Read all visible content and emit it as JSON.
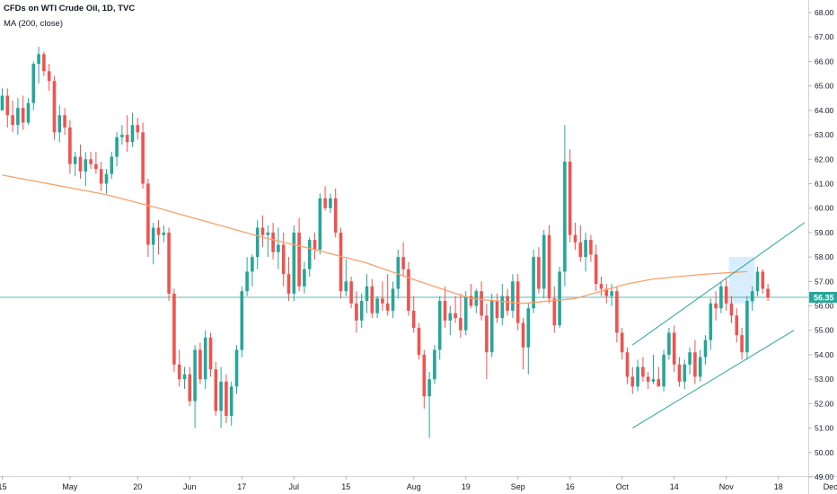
{
  "legend": {
    "title": "CFDs on WTI Crude Oil, 1D, TVC",
    "ma_label": "MA (200, close)"
  },
  "chart_data": {
    "type": "candlestick",
    "title": "CFDs on WTI Crude Oil, 1D, TVC",
    "indicator": "MA (200, close)",
    "ylim": [
      49.0,
      68.0
    ],
    "y_ticks": [
      49.0,
      50.0,
      51.0,
      52.0,
      53.0,
      54.0,
      55.0,
      56.0,
      57.0,
      58.0,
      59.0,
      60.0,
      61.0,
      62.0,
      63.0,
      64.0,
      65.0,
      66.0,
      67.0,
      68.0
    ],
    "y_tick_labels": [
      "49.00",
      "50.00",
      "51.00",
      "52.00",
      "53.00",
      "54.00",
      "55.00",
      "56.00",
      "57.00",
      "58.00",
      "59.00",
      "60.00",
      "61.00",
      "62.00",
      "63.00",
      "64.00",
      "65.00",
      "66.00",
      "67.00",
      "68.00"
    ],
    "x_labels": [
      "15",
      "May",
      "20",
      "Jun",
      "17",
      "Jul",
      "15",
      "Aug",
      "19",
      "Sep",
      "16",
      "Oct",
      "14",
      "Nov",
      "18",
      "Dec"
    ],
    "x_label_index": [
      0,
      13,
      26,
      36,
      46,
      56,
      66,
      79,
      89,
      99,
      109,
      119,
      129,
      139,
      149,
      159
    ],
    "last_price": 56.35,
    "last_price_label": "56.35",
    "colors": {
      "up": "#26a69a",
      "down": "#ef5350",
      "ma": "#f7a26b",
      "channel": "#26a69a",
      "highlight": "#bbdefb",
      "last_line": "#26a69a",
      "axis_text": "#131722",
      "grid": "#e0e3eb"
    },
    "candles": [
      [
        64.0,
        64.9,
        64.0,
        64.6
      ],
      [
        64.6,
        64.9,
        63.3,
        63.8
      ],
      [
        63.8,
        64.4,
        63.1,
        63.4
      ],
      [
        63.4,
        64.5,
        63.0,
        64.1
      ],
      [
        64.1,
        64.6,
        63.2,
        63.5
      ],
      [
        63.5,
        64.5,
        63.4,
        64.3
      ],
      [
        64.3,
        66.0,
        64.0,
        65.9
      ],
      [
        65.9,
        66.6,
        65.1,
        66.3
      ],
      [
        66.3,
        66.4,
        65.4,
        65.6
      ],
      [
        65.6,
        65.9,
        64.8,
        65.2
      ],
      [
        65.2,
        65.4,
        62.8,
        63.1
      ],
      [
        63.1,
        64.2,
        62.7,
        63.8
      ],
      [
        63.8,
        64.1,
        63.0,
        63.3
      ],
      [
        63.3,
        63.6,
        61.4,
        61.8
      ],
      [
        61.8,
        62.3,
        61.3,
        62.1
      ],
      [
        62.1,
        62.6,
        61.2,
        61.5
      ],
      [
        61.5,
        62.3,
        60.9,
        62.0
      ],
      [
        62.0,
        62.3,
        61.6,
        61.8
      ],
      [
        61.8,
        62.3,
        61.4,
        61.6
      ],
      [
        61.6,
        61.9,
        60.7,
        61.0
      ],
      [
        61.0,
        61.6,
        60.6,
        61.4
      ],
      [
        61.4,
        62.3,
        61.2,
        62.1
      ],
      [
        62.1,
        63.1,
        61.7,
        62.9
      ],
      [
        62.9,
        63.4,
        62.6,
        63.0
      ],
      [
        63.0,
        63.8,
        62.3,
        62.7
      ],
      [
        62.7,
        63.9,
        62.5,
        63.4
      ],
      [
        63.4,
        63.7,
        62.8,
        63.1
      ],
      [
        63.1,
        63.5,
        60.8,
        61.0
      ],
      [
        61.0,
        61.2,
        58.0,
        58.5
      ],
      [
        58.5,
        59.4,
        57.7,
        59.2
      ],
      [
        59.2,
        59.5,
        58.1,
        58.9
      ],
      [
        58.9,
        59.3,
        58.6,
        59.0
      ],
      [
        59.0,
        59.2,
        56.2,
        56.5
      ],
      [
        56.5,
        56.7,
        53.3,
        53.6
      ],
      [
        53.6,
        54.2,
        52.7,
        53.0
      ],
      [
        53.0,
        53.5,
        52.6,
        53.2
      ],
      [
        53.2,
        53.5,
        51.9,
        52.1
      ],
      [
        52.1,
        54.4,
        51.0,
        54.2
      ],
      [
        54.2,
        54.5,
        52.8,
        53.0
      ],
      [
        53.0,
        55.0,
        52.6,
        54.7
      ],
      [
        54.7,
        54.9,
        53.1,
        53.4
      ],
      [
        53.4,
        53.7,
        51.5,
        51.7
      ],
      [
        51.7,
        53.5,
        51.0,
        52.9
      ],
      [
        52.9,
        53.2,
        51.2,
        51.5
      ],
      [
        51.5,
        52.9,
        51.1,
        52.7
      ],
      [
        52.7,
        54.4,
        52.4,
        54.2
      ],
      [
        54.2,
        56.8,
        53.9,
        56.6
      ],
      [
        56.6,
        58.0,
        56.4,
        57.4
      ],
      [
        57.4,
        58.1,
        56.8,
        58.0
      ],
      [
        58.0,
        59.5,
        57.5,
        59.2
      ],
      [
        59.2,
        59.7,
        58.4,
        58.9
      ],
      [
        58.9,
        59.3,
        58.0,
        59.0
      ],
      [
        59.0,
        59.4,
        57.9,
        58.2
      ],
      [
        58.2,
        59.2,
        57.5,
        58.5
      ],
      [
        58.5,
        59.0,
        56.8,
        57.3
      ],
      [
        57.3,
        58.0,
        56.2,
        56.5
      ],
      [
        56.5,
        59.3,
        56.2,
        59.0
      ],
      [
        59.0,
        59.6,
        56.6,
        56.8
      ],
      [
        56.8,
        57.8,
        56.5,
        57.5
      ],
      [
        57.5,
        58.8,
        57.2,
        58.7
      ],
      [
        58.7,
        59.0,
        57.9,
        58.3
      ],
      [
        58.3,
        60.6,
        58.1,
        60.4
      ],
      [
        60.4,
        60.9,
        59.9,
        60.0
      ],
      [
        60.0,
        60.6,
        59.8,
        60.4
      ],
      [
        60.4,
        60.8,
        58.8,
        59.0
      ],
      [
        59.0,
        59.2,
        56.3,
        56.6
      ],
      [
        56.6,
        57.9,
        56.4,
        57.0
      ],
      [
        57.0,
        57.2,
        55.9,
        56.1
      ],
      [
        56.1,
        56.6,
        54.9,
        55.4
      ],
      [
        55.4,
        56.5,
        55.1,
        56.2
      ],
      [
        56.2,
        57.3,
        55.7,
        56.8
      ],
      [
        56.8,
        57.1,
        55.5,
        55.7
      ],
      [
        55.7,
        56.4,
        55.5,
        56.3
      ],
      [
        56.3,
        57.0,
        55.8,
        56.1
      ],
      [
        56.1,
        57.3,
        55.6,
        55.8
      ],
      [
        55.8,
        57.0,
        55.5,
        56.7
      ],
      [
        56.7,
        58.3,
        56.3,
        58.0
      ],
      [
        58.0,
        58.6,
        57.2,
        57.5
      ],
      [
        57.5,
        57.8,
        55.6,
        55.8
      ],
      [
        55.8,
        56.4,
        54.9,
        55.1
      ],
      [
        55.1,
        55.3,
        53.8,
        54.0
      ],
      [
        54.0,
        54.2,
        51.8,
        52.3
      ],
      [
        52.3,
        53.3,
        50.6,
        53.0
      ],
      [
        53.0,
        54.4,
        52.8,
        54.2
      ],
      [
        54.2,
        56.4,
        53.8,
        56.2
      ],
      [
        56.2,
        56.8,
        55.1,
        55.4
      ],
      [
        55.4,
        56.0,
        54.8,
        55.7
      ],
      [
        55.7,
        56.4,
        55.3,
        55.5
      ],
      [
        55.5,
        56.5,
        54.7,
        55.0
      ],
      [
        55.0,
        56.6,
        54.8,
        56.4
      ],
      [
        56.4,
        56.9,
        55.9,
        56.0
      ],
      [
        56.0,
        56.7,
        55.7,
        56.6
      ],
      [
        56.6,
        57.0,
        55.4,
        55.6
      ],
      [
        55.6,
        56.1,
        53.0,
        54.1
      ],
      [
        54.1,
        56.5,
        53.9,
        56.2
      ],
      [
        56.2,
        56.5,
        55.3,
        55.5
      ],
      [
        55.5,
        56.9,
        55.2,
        56.4
      ],
      [
        56.4,
        56.7,
        55.6,
        55.8
      ],
      [
        55.8,
        57.3,
        55.5,
        57.0
      ],
      [
        57.0,
        57.3,
        55.0,
        55.3
      ],
      [
        55.3,
        55.5,
        53.4,
        54.3
      ],
      [
        54.3,
        56.1,
        53.2,
        55.9
      ],
      [
        55.9,
        58.3,
        55.7,
        58.0
      ],
      [
        58.0,
        58.4,
        56.5,
        56.7
      ],
      [
        56.7,
        59.1,
        56.3,
        58.9
      ],
      [
        58.9,
        59.3,
        56.1,
        56.3
      ],
      [
        56.3,
        56.8,
        54.9,
        55.2
      ],
      [
        55.2,
        57.6,
        55.1,
        57.4
      ],
      [
        57.4,
        63.4,
        56.8,
        61.9
      ],
      [
        61.9,
        62.4,
        58.6,
        58.9
      ],
      [
        58.9,
        59.4,
        58.3,
        58.6
      ],
      [
        58.6,
        59.3,
        57.8,
        58.0
      ],
      [
        58.0,
        59.0,
        57.4,
        58.7
      ],
      [
        58.7,
        58.9,
        57.8,
        58.1
      ],
      [
        58.1,
        58.5,
        56.6,
        56.9
      ],
      [
        56.9,
        57.2,
        56.4,
        56.7
      ],
      [
        56.7,
        56.9,
        56.1,
        56.4
      ],
      [
        56.4,
        56.9,
        56.0,
        56.6
      ],
      [
        56.6,
        56.8,
        54.5,
        54.9
      ],
      [
        54.9,
        55.1,
        53.8,
        54.1
      ],
      [
        54.1,
        54.3,
        52.8,
        53.1
      ],
      [
        53.1,
        53.5,
        52.4,
        52.7
      ],
      [
        52.7,
        53.8,
        52.5,
        53.5
      ],
      [
        53.5,
        53.9,
        52.9,
        53.1
      ],
      [
        53.1,
        53.3,
        52.6,
        52.9
      ],
      [
        52.9,
        54.0,
        52.8,
        53.0
      ],
      [
        53.0,
        53.5,
        52.7,
        52.7
      ],
      [
        52.7,
        54.2,
        52.5,
        54.0
      ],
      [
        54.0,
        55.1,
        53.8,
        54.9
      ],
      [
        54.9,
        55.2,
        53.3,
        53.6
      ],
      [
        53.6,
        53.9,
        52.7,
        52.9
      ],
      [
        52.9,
        53.8,
        52.6,
        53.6
      ],
      [
        53.6,
        54.3,
        53.2,
        54.1
      ],
      [
        54.1,
        54.6,
        52.8,
        53.1
      ],
      [
        53.1,
        54.2,
        52.9,
        53.9
      ],
      [
        53.9,
        54.8,
        53.6,
        54.6
      ],
      [
        54.6,
        56.3,
        54.2,
        56.1
      ],
      [
        56.1,
        56.6,
        55.4,
        55.9
      ],
      [
        55.9,
        57.0,
        55.7,
        56.8
      ],
      [
        56.8,
        57.1,
        55.8,
        56.1
      ],
      [
        56.1,
        56.4,
        55.3,
        55.6
      ],
      [
        55.6,
        55.9,
        54.5,
        54.8
      ],
      [
        54.8,
        55.1,
        53.8,
        54.1
      ],
      [
        54.1,
        56.4,
        53.8,
        56.2
      ],
      [
        56.2,
        56.8,
        55.8,
        56.6
      ],
      [
        56.6,
        57.6,
        56.4,
        57.4
      ],
      [
        57.4,
        57.5,
        56.5,
        56.7
      ],
      [
        56.7,
        56.9,
        56.2,
        56.35
      ]
    ],
    "ma": {
      "points": [
        [
          0,
          61.35
        ],
        [
          10,
          60.95
        ],
        [
          20,
          60.55
        ],
        [
          30,
          60.0
        ],
        [
          40,
          59.4
        ],
        [
          50,
          58.8
        ],
        [
          60,
          58.3
        ],
        [
          70,
          57.75
        ],
        [
          80,
          57.0
        ],
        [
          90,
          56.3
        ],
        [
          100,
          56.1
        ],
        [
          110,
          56.3
        ],
        [
          115,
          56.6
        ],
        [
          120,
          56.9
        ],
        [
          125,
          57.1
        ],
        [
          130,
          57.2
        ],
        [
          135,
          57.3
        ],
        [
          143,
          57.4
        ]
      ]
    },
    "channel": {
      "upper": [
        [
          121,
          54.4
        ],
        [
          154,
          59.4
        ]
      ],
      "lower": [
        [
          121,
          51.0
        ],
        [
          152,
          55.0
        ]
      ]
    },
    "highlight_box": {
      "x0": 139.5,
      "x1": 144.5,
      "y0": 56.1,
      "y1": 58.0
    }
  }
}
